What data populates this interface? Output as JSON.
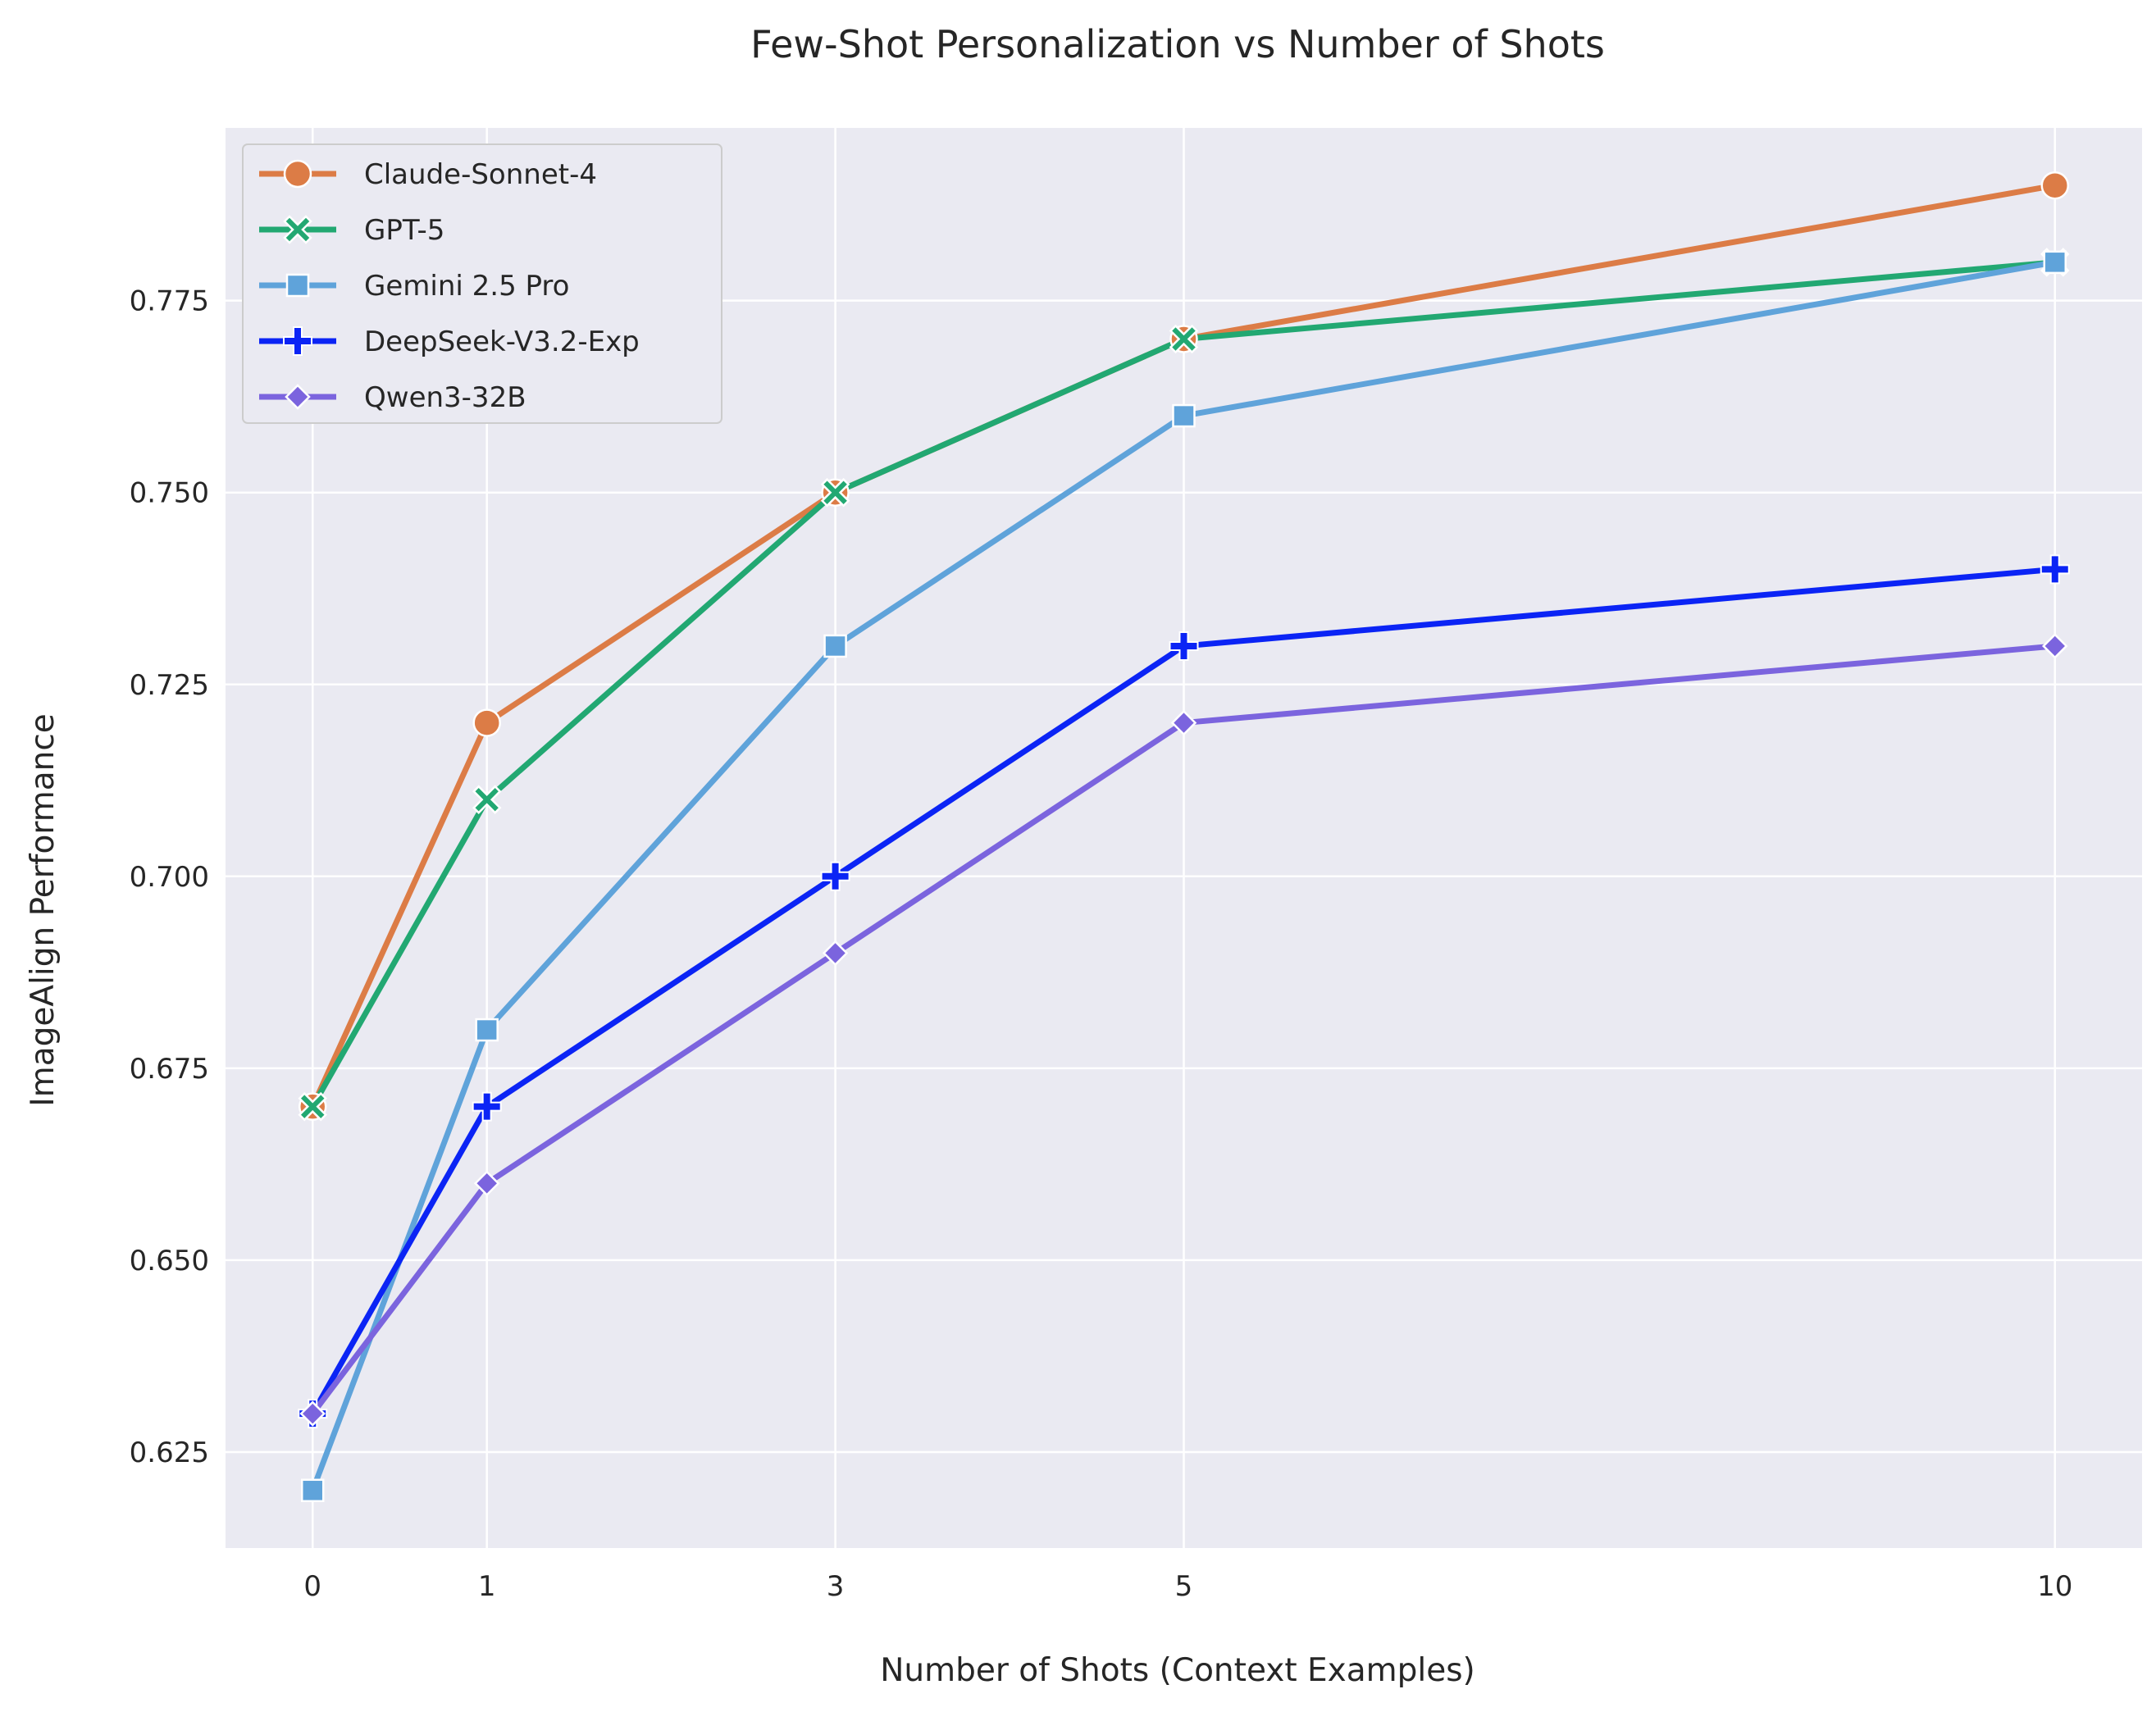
{
  "chart_data": {
    "type": "line",
    "title": "Few-Shot Personalization vs Number of Shots",
    "xlabel": "Number of Shots (Context Examples)",
    "ylabel": "ImageAlign Performance",
    "x": [
      0,
      1,
      3,
      5,
      10
    ],
    "x_tick_labels": [
      "0",
      "1",
      "3",
      "5",
      "10"
    ],
    "xlim": [
      -0.5,
      10.5
    ],
    "ylim": [
      0.6125,
      0.7975
    ],
    "y_ticks": [
      0.625,
      0.65,
      0.675,
      0.7,
      0.725,
      0.75,
      0.775
    ],
    "y_tick_labels": [
      "0.625",
      "0.650",
      "0.675",
      "0.700",
      "0.725",
      "0.750",
      "0.775"
    ],
    "grid": true,
    "legend_position": "top-left",
    "background": "#eaeaf2",
    "series": [
      {
        "name": "Claude-Sonnet-4",
        "marker": "circle",
        "color": "#dc7c46",
        "values": [
          0.67,
          0.72,
          0.75,
          0.77,
          0.79
        ]
      },
      {
        "name": "GPT-5",
        "marker": "x",
        "color": "#22a872",
        "values": [
          0.67,
          0.71,
          0.75,
          0.77,
          0.78
        ]
      },
      {
        "name": "Gemini 2.5 Pro",
        "marker": "square",
        "color": "#5fa3da",
        "values": [
          0.62,
          0.68,
          0.73,
          0.76,
          0.78
        ]
      },
      {
        "name": "DeepSeek-V3.2-Exp",
        "marker": "plus",
        "color": "#0b24f5",
        "values": [
          0.63,
          0.67,
          0.7,
          0.73,
          0.74
        ]
      },
      {
        "name": "Qwen3-32B",
        "marker": "diamond",
        "color": "#7b64de",
        "values": [
          0.63,
          0.66,
          0.69,
          0.72,
          0.73
        ]
      }
    ]
  }
}
